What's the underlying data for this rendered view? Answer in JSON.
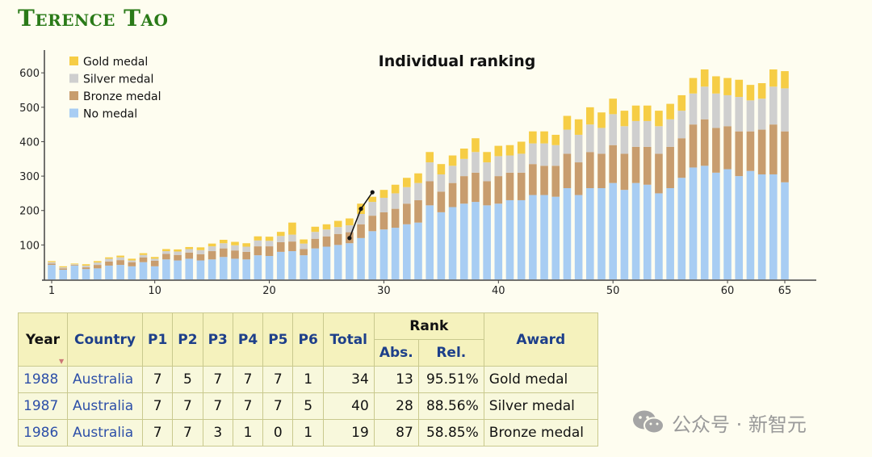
{
  "page": {
    "title": "Terence Tao"
  },
  "colors": {
    "gold": "#f6cd45",
    "silver": "#cfcfcf",
    "bronze": "#c89d6e",
    "none": "#a8cdf3",
    "title": "#2a7a18",
    "header_text": "#1d3f8a",
    "link": "#2d4fa8"
  },
  "chart_data": {
    "type": "bar",
    "stacked": true,
    "title": "Individual ranking",
    "xlabel": "",
    "ylabel": "",
    "ylim": [
      0,
      650
    ],
    "xlim": [
      1,
      65
    ],
    "x_ticks": [
      1,
      10,
      20,
      30,
      40,
      50,
      60,
      65
    ],
    "y_ticks": [
      100,
      200,
      300,
      400,
      500,
      600
    ],
    "legend_position": "top-left",
    "categories": [
      1,
      2,
      3,
      4,
      5,
      6,
      7,
      8,
      9,
      10,
      11,
      12,
      13,
      14,
      15,
      16,
      17,
      18,
      19,
      20,
      21,
      22,
      23,
      24,
      25,
      26,
      27,
      28,
      29,
      30,
      31,
      32,
      33,
      34,
      35,
      36,
      37,
      38,
      39,
      40,
      41,
      42,
      43,
      44,
      45,
      46,
      47,
      48,
      49,
      50,
      51,
      52,
      53,
      54,
      55,
      56,
      57,
      58,
      59,
      60,
      61,
      62,
      63,
      64,
      65
    ],
    "series": [
      {
        "name": "No medal",
        "key": "none",
        "values": [
          42,
          28,
          40,
          30,
          32,
          40,
          42,
          38,
          50,
          38,
          58,
          55,
          60,
          55,
          58,
          65,
          60,
          58,
          70,
          68,
          80,
          82,
          70,
          90,
          95,
          100,
          105,
          120,
          140,
          145,
          150,
          160,
          165,
          215,
          195,
          210,
          220,
          225,
          215,
          220,
          230,
          230,
          245,
          245,
          240,
          265,
          245,
          265,
          265,
          280,
          260,
          280,
          275,
          250,
          265,
          295,
          325,
          330,
          310,
          320,
          300,
          315,
          305,
          305,
          282
        ]
      },
      {
        "name": "Bronze medal",
        "key": "bronze",
        "values": [
          4,
          4,
          2,
          5,
          10,
          12,
          14,
          12,
          14,
          16,
          16,
          16,
          18,
          18,
          24,
          25,
          24,
          22,
          26,
          28,
          28,
          28,
          18,
          28,
          30,
          32,
          32,
          40,
          45,
          50,
          55,
          60,
          65,
          70,
          60,
          70,
          80,
          85,
          70,
          80,
          80,
          80,
          90,
          85,
          90,
          100,
          95,
          105,
          100,
          110,
          105,
          105,
          110,
          115,
          120,
          115,
          125,
          135,
          130,
          125,
          130,
          115,
          130,
          145,
          148
        ]
      },
      {
        "name": "Silver medal",
        "key": "silver",
        "values": [
          4,
          3,
          2,
          5,
          7,
          8,
          8,
          5,
          7,
          6,
          8,
          10,
          10,
          12,
          14,
          15,
          15,
          15,
          17,
          16,
          18,
          20,
          16,
          20,
          20,
          20,
          20,
          30,
          40,
          42,
          45,
          48,
          50,
          55,
          50,
          50,
          50,
          60,
          55,
          58,
          50,
          55,
          60,
          65,
          60,
          70,
          80,
          80,
          75,
          90,
          80,
          75,
          75,
          80,
          80,
          80,
          90,
          95,
          100,
          90,
          100,
          90,
          90,
          110,
          125
        ]
      },
      {
        "name": "Gold medal",
        "key": "gold",
        "values": [
          3,
          3,
          2,
          4,
          4,
          4,
          5,
          5,
          5,
          5,
          6,
          6,
          6,
          8,
          8,
          10,
          10,
          10,
          12,
          12,
          12,
          35,
          12,
          15,
          15,
          18,
          20,
          30,
          15,
          23,
          25,
          27,
          28,
          30,
          30,
          30,
          30,
          40,
          30,
          30,
          30,
          35,
          35,
          35,
          30,
          40,
          45,
          50,
          45,
          45,
          45,
          45,
          45,
          45,
          45,
          45,
          45,
          50,
          50,
          50,
          50,
          45,
          45,
          50,
          50
        ]
      }
    ],
    "annotation_line": {
      "x": [
        27,
        28,
        29
      ],
      "y": [
        120,
        205,
        253
      ]
    }
  },
  "table": {
    "headers": {
      "year": "Year",
      "country": "Country",
      "p1": "P1",
      "p2": "P2",
      "p3": "P3",
      "p4": "P4",
      "p5": "P5",
      "p6": "P6",
      "total": "Total",
      "rank": "Rank",
      "abs": "Abs.",
      "rel": "Rel.",
      "award": "Award"
    },
    "rows": [
      {
        "year": "1988",
        "country": "Australia",
        "p1": "7",
        "p2": "5",
        "p3": "7",
        "p4": "7",
        "p5": "7",
        "p6": "1",
        "total": "34",
        "abs": "13",
        "rel": "95.51%",
        "award": "Gold medal"
      },
      {
        "year": "1987",
        "country": "Australia",
        "p1": "7",
        "p2": "7",
        "p3": "7",
        "p4": "7",
        "p5": "7",
        "p6": "5",
        "total": "40",
        "abs": "28",
        "rel": "88.56%",
        "award": "Silver medal"
      },
      {
        "year": "1986",
        "country": "Australia",
        "p1": "7",
        "p2": "7",
        "p3": "3",
        "p4": "1",
        "p5": "0",
        "p6": "1",
        "total": "19",
        "abs": "87",
        "rel": "58.85%",
        "award": "Bronze medal"
      }
    ]
  },
  "watermark": {
    "icon": "wechat-icon",
    "text": "公众号 · 新智元"
  }
}
